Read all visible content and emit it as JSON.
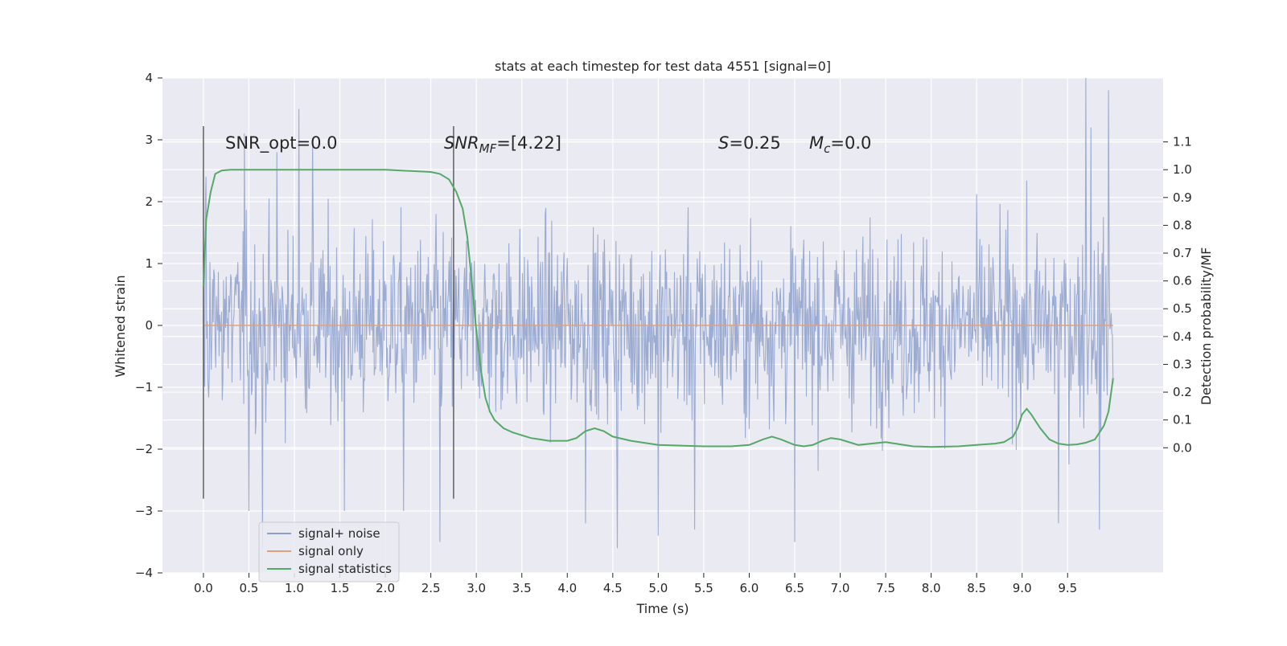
{
  "chart_data": {
    "type": "line",
    "title": "stats at each timestep for test data 4551 [signal=0]",
    "xlabel": "Time (s)",
    "ylabel": "Whitened strain",
    "y2label": "Detection probability/MF",
    "xlim": [
      -0.45,
      10.55
    ],
    "ylim": [
      -4.0,
      4.0
    ],
    "y2lim": [
      -0.45,
      1.33
    ],
    "x_ticks": [
      0.0,
      0.5,
      1.0,
      1.5,
      2.0,
      2.5,
      3.0,
      3.5,
      4.0,
      4.5,
      5.0,
      5.5,
      6.0,
      6.5,
      7.0,
      7.5,
      8.0,
      8.5,
      9.0,
      9.5
    ],
    "x_tick_labels": [
      "0.0",
      "0.5",
      "1.0",
      "1.5",
      "2.0",
      "2.5",
      "3.0",
      "3.5",
      "4.0",
      "4.5",
      "5.0",
      "5.5",
      "6.0",
      "6.5",
      "7.0",
      "7.5",
      "8.0",
      "8.5",
      "9.0",
      "9.5"
    ],
    "y_ticks": [
      4,
      3,
      2,
      1,
      0,
      -1,
      -2,
      -3,
      -4
    ],
    "y_tick_labels": [
      "4",
      "3",
      "2",
      "1",
      "0",
      "−1",
      "−2",
      "−3",
      "−4"
    ],
    "y2_ticks": [
      1.1,
      1.0,
      0.9,
      0.8,
      0.7,
      0.6,
      0.5,
      0.4,
      0.3,
      0.2,
      0.1,
      0.0
    ],
    "y2_tick_labels": [
      "1.1",
      "1.0",
      "0.9",
      "0.8",
      "0.7",
      "0.6",
      "0.5",
      "0.4",
      "0.3",
      "0.2",
      "0.1",
      "0.0"
    ],
    "grid": true,
    "legend_position": "lower-left",
    "legend": [
      {
        "label": "signal+ noise",
        "color": "#8da0cb"
      },
      {
        "label": "signal only",
        "color": "#e0a080"
      },
      {
        "label": "signal statistics",
        "color": "#55a868"
      }
    ],
    "annotations": {
      "snr_opt": "SNR_opt=0.0",
      "snr_mf_base": "SNR",
      "snr_mf_sub": "MF",
      "snr_mf_value": "=[4.22]",
      "s_italic": "S",
      "s_value": "=0.25",
      "mc_base": "M",
      "mc_sub": "c",
      "mc_value": "=0.0"
    },
    "vertical_markers": [
      0.0,
      2.75
    ],
    "series": [
      {
        "name": "signal+ noise",
        "kind": "dense-noise",
        "x_range": [
          0.0,
          10.0
        ],
        "color": "#8da0cb",
        "envelope_extremes": [
          [
            0.03,
            2.4
          ],
          [
            0.45,
            3.1
          ],
          [
            0.81,
            2.8
          ],
          [
            1.05,
            3.5
          ],
          [
            1.2,
            3.0
          ],
          [
            0.5,
            -3.0
          ],
          [
            0.65,
            -3.6
          ],
          [
            1.55,
            -3.0
          ],
          [
            2.2,
            -3.0
          ],
          [
            2.6,
            -3.5
          ],
          [
            4.2,
            -3.2
          ],
          [
            4.55,
            -3.6
          ],
          [
            5.0,
            -3.4
          ],
          [
            5.4,
            -3.3
          ],
          [
            6.5,
            -3.5
          ],
          [
            9.4,
            -3.2
          ],
          [
            9.7,
            4.0
          ],
          [
            9.76,
            3.2
          ],
          [
            9.95,
            3.8
          ],
          [
            9.85,
            -3.3
          ]
        ]
      },
      {
        "name": "signal only",
        "kind": "line",
        "x": [
          0.0,
          10.0
        ],
        "y": [
          0.0,
          0.0
        ],
        "color": "#e0a080"
      },
      {
        "name": "signal statistics",
        "axis": "right",
        "kind": "line",
        "color": "#55a868",
        "x": [
          0.0,
          0.03,
          0.08,
          0.13,
          0.2,
          0.3,
          0.5,
          1.0,
          1.5,
          2.0,
          2.3,
          2.5,
          2.6,
          2.7,
          2.78,
          2.85,
          2.9,
          2.95,
          3.0,
          3.05,
          3.1,
          3.15,
          3.2,
          3.3,
          3.4,
          3.5,
          3.6,
          3.7,
          3.8,
          4.0,
          4.1,
          4.2,
          4.3,
          4.4,
          4.5,
          4.7,
          5.0,
          5.5,
          5.8,
          6.0,
          6.15,
          6.25,
          6.35,
          6.5,
          6.6,
          6.7,
          6.8,
          6.9,
          7.0,
          7.2,
          7.5,
          7.8,
          8.0,
          8.3,
          8.5,
          8.7,
          8.8,
          8.9,
          8.95,
          9.0,
          9.05,
          9.1,
          9.2,
          9.3,
          9.4,
          9.5,
          9.6,
          9.7,
          9.8,
          9.9,
          9.95,
          10.0
        ],
        "y": [
          0.58,
          0.82,
          0.92,
          0.985,
          0.997,
          1.0,
          1.0,
          1.0,
          1.0,
          1.0,
          0.995,
          0.992,
          0.985,
          0.965,
          0.92,
          0.86,
          0.76,
          0.6,
          0.42,
          0.28,
          0.18,
          0.13,
          0.1,
          0.07,
          0.055,
          0.045,
          0.035,
          0.03,
          0.025,
          0.025,
          0.035,
          0.06,
          0.07,
          0.06,
          0.04,
          0.025,
          0.01,
          0.005,
          0.005,
          0.01,
          0.03,
          0.04,
          0.03,
          0.01,
          0.005,
          0.01,
          0.025,
          0.035,
          0.03,
          0.01,
          0.02,
          0.005,
          0.003,
          0.005,
          0.01,
          0.015,
          0.02,
          0.04,
          0.07,
          0.12,
          0.14,
          0.12,
          0.07,
          0.03,
          0.015,
          0.01,
          0.012,
          0.018,
          0.03,
          0.08,
          0.13,
          0.25
        ]
      }
    ]
  }
}
